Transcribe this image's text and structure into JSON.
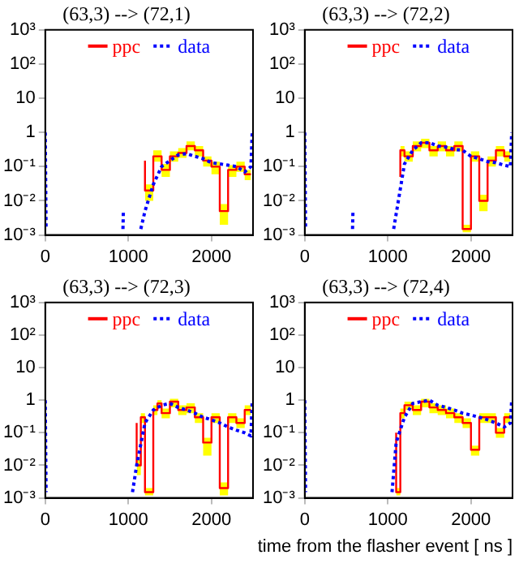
{
  "chart_data": [
    {
      "type": "step",
      "title": "(63,3) --> (72,1)",
      "log": "y",
      "legend": "top",
      "line_style": "solid",
      "xlim": [
        0,
        2500
      ],
      "xticks": [
        0,
        1000,
        2000
      ],
      "ylim": [
        0.001,
        1000
      ],
      "yticks": [
        {
          "value": 1000,
          "label": "10³"
        },
        {
          "value": 100,
          "label": "10²"
        },
        {
          "value": 10,
          "label": "10"
        },
        {
          "value": 1,
          "label": "1"
        },
        {
          "value": 0.1,
          "label": "10⁻¹"
        },
        {
          "value": 0.01,
          "label": "10⁻²"
        },
        {
          "value": 0.001,
          "label": "10⁻³"
        }
      ],
      "series": [
        {
          "name": "ppc",
          "color": "#ff0000",
          "x": [
            1200,
            1300,
            1400,
            1500,
            1600,
            1700,
            1800,
            1900,
            2000,
            2100,
            2200,
            2300,
            2400,
            2475
          ],
          "values": [
            0.15,
            0.02,
            0.2,
            0.08,
            0.2,
            0.25,
            0.4,
            0.3,
            0.15,
            0.1,
            0.005,
            0.08,
            0.1,
            0.06
          ],
          "upper": [
            0.2,
            0.03,
            0.3,
            0.12,
            0.28,
            0.35,
            0.55,
            0.4,
            0.2,
            0.14,
            0.008,
            0.11,
            0.14,
            0.08
          ],
          "lower": [
            0.1,
            0.01,
            0.14,
            0.05,
            0.14,
            0.18,
            0.3,
            0.2,
            0.1,
            0.06,
            0.002,
            0.05,
            0.07,
            0.04
          ]
        },
        {
          "name": "data",
          "type": "line",
          "color": "#0000ff",
          "line_style": "dotted",
          "x": [
            0,
            10,
            20,
            935,
            940,
            950,
            1150,
            1200,
            1300,
            1400,
            1500,
            1600,
            1700,
            1800,
            1900,
            2000,
            2100,
            2200,
            2300,
            2400,
            2475,
            2490
          ],
          "values": [
            1,
            0.0015,
            null,
            0.0015,
            0.005,
            null,
            0.0015,
            0.005,
            0.03,
            0.1,
            0.15,
            0.22,
            0.24,
            0.2,
            0.17,
            0.13,
            0.12,
            0.11,
            0.1,
            0.07,
            0.1,
            1
          ]
        }
      ]
    },
    {
      "type": "step",
      "title": "(63,3) --> (72,2)",
      "log": "y",
      "legend": "top",
      "line_style": "solid",
      "xlim": [
        0,
        2500
      ],
      "xticks": [
        0,
        1000,
        2000
      ],
      "ylim": [
        0.001,
        1000
      ],
      "yticks": [
        {
          "value": 1000,
          "label": "10³"
        },
        {
          "value": 100,
          "label": "10²"
        },
        {
          "value": 10,
          "label": "10"
        },
        {
          "value": 1,
          "label": "1"
        },
        {
          "value": 0.1,
          "label": "10⁻¹"
        },
        {
          "value": 0.01,
          "label": "10⁻²"
        },
        {
          "value": 0.001,
          "label": "10⁻³"
        }
      ],
      "series": [
        {
          "name": "ppc",
          "color": "#ff0000",
          "x": [
            1150,
            1200,
            1300,
            1400,
            1500,
            1600,
            1700,
            1800,
            1900,
            2000,
            2100,
            2200,
            2300,
            2400,
            2475
          ],
          "values": [
            0.05,
            0.3,
            0.2,
            0.4,
            0.5,
            0.3,
            0.4,
            0.3,
            0.4,
            0.0015,
            0.2,
            0.01,
            0.15,
            0.3,
            0.2
          ],
          "upper": [
            0.07,
            0.4,
            0.28,
            0.55,
            0.65,
            0.4,
            0.55,
            0.4,
            0.55,
            0.002,
            0.28,
            0.015,
            0.2,
            0.4,
            0.28
          ],
          "lower": [
            0.03,
            0.2,
            0.14,
            0.28,
            0.35,
            0.2,
            0.28,
            0.2,
            0.28,
            0.0012,
            0.14,
            0.005,
            0.1,
            0.2,
            0.14
          ]
        },
        {
          "name": "data",
          "type": "line",
          "color": "#0000ff",
          "line_style": "dotted",
          "x": [
            0,
            10,
            20,
            575,
            580,
            590,
            1070,
            1200,
            1300,
            1400,
            1500,
            1600,
            1700,
            1800,
            1900,
            2000,
            2100,
            2200,
            2300,
            2400,
            2475,
            2490
          ],
          "values": [
            1,
            0.0015,
            null,
            0.0015,
            0.005,
            null,
            0.0015,
            0.12,
            0.3,
            0.5,
            0.5,
            0.4,
            0.37,
            0.32,
            0.3,
            0.2,
            0.17,
            0.14,
            0.13,
            0.11,
            0.1,
            1
          ]
        }
      ]
    },
    {
      "type": "step",
      "title": "(63,3) --> (72,3)",
      "log": "y",
      "legend": "top",
      "line_style": "solid",
      "xlim": [
        0,
        2500
      ],
      "xticks": [
        0,
        1000,
        2000
      ],
      "ylim": [
        0.001,
        1000
      ],
      "yticks": [
        {
          "value": 1000,
          "label": "10³"
        },
        {
          "value": 100,
          "label": "10²"
        },
        {
          "value": 10,
          "label": "10"
        },
        {
          "value": 1,
          "label": "1"
        },
        {
          "value": 0.1,
          "label": "10⁻¹"
        },
        {
          "value": 0.01,
          "label": "10⁻²"
        },
        {
          "value": 0.001,
          "label": "10⁻³"
        }
      ],
      "series": [
        {
          "name": "ppc",
          "color": "#ff0000",
          "x": [
            1100,
            1150,
            1200,
            1300,
            1350,
            1400,
            1500,
            1600,
            1700,
            1800,
            1900,
            2000,
            2100,
            2200,
            2300,
            2400,
            2475
          ],
          "values": [
            0.2,
            0.01,
            0.3,
            0.0015,
            0.5,
            0.8,
            0.4,
            0.9,
            0.5,
            0.6,
            0.3,
            0.05,
            0.3,
            0.002,
            0.3,
            0.2,
            0.5
          ],
          "upper": [
            0.28,
            0.015,
            0.4,
            0.002,
            0.7,
            1,
            0.55,
            1.1,
            0.7,
            0.8,
            0.4,
            0.07,
            0.4,
            0.003,
            0.4,
            0.28,
            0.7
          ],
          "lower": [
            0.14,
            0.005,
            0.2,
            0.0012,
            0.35,
            0.55,
            0.28,
            0.6,
            0.35,
            0.4,
            0.2,
            0.02,
            0.2,
            0.0012,
            0.2,
            0.14,
            0.35
          ]
        },
        {
          "name": "data",
          "type": "line",
          "color": "#0000ff",
          "line_style": "dotted",
          "x": [
            0,
            10,
            20,
            1050,
            1100,
            1200,
            1300,
            1400,
            1500,
            1600,
            1700,
            1800,
            1900,
            2000,
            2100,
            2200,
            2300,
            2400,
            2475,
            2490
          ],
          "values": [
            1,
            0.0015,
            null,
            0.0015,
            0.01,
            0.2,
            0.5,
            0.7,
            0.8,
            0.6,
            0.5,
            0.4,
            0.3,
            0.25,
            0.2,
            0.15,
            0.12,
            0.1,
            0.08,
            1
          ]
        }
      ]
    },
    {
      "type": "step",
      "title": "(63,3) --> (72,4)",
      "xlabel": "time from the flasher event [ ns ]",
      "log": "y",
      "legend": "top",
      "line_style": "solid",
      "xlim": [
        0,
        2500
      ],
      "xticks": [
        0,
        1000,
        2000
      ],
      "ylim": [
        0.001,
        1000
      ],
      "yticks": [
        {
          "value": 1000,
          "label": "10³"
        },
        {
          "value": 100,
          "label": "10²"
        },
        {
          "value": 10,
          "label": "10"
        },
        {
          "value": 1,
          "label": "1"
        },
        {
          "value": 0.1,
          "label": "10⁻¹"
        },
        {
          "value": 0.01,
          "label": "10⁻²"
        },
        {
          "value": 0.001,
          "label": "10⁻³"
        }
      ],
      "series": [
        {
          "name": "ppc",
          "color": "#ff0000",
          "x": [
            1100,
            1150,
            1200,
            1300,
            1400,
            1500,
            1600,
            1700,
            1800,
            1900,
            2000,
            2100,
            2200,
            2300,
            2400,
            2475
          ],
          "values": [
            0.1,
            0.0015,
            0.4,
            0.7,
            0.5,
            0.9,
            0.6,
            0.5,
            0.4,
            0.3,
            0.2,
            0.03,
            0.3,
            0.3,
            0.1,
            0.3
          ],
          "upper": [
            0.14,
            0.002,
            0.55,
            0.9,
            0.7,
            1.1,
            0.8,
            0.7,
            0.55,
            0.4,
            0.28,
            0.04,
            0.4,
            0.4,
            0.14,
            0.4
          ],
          "lower": [
            0.07,
            0.0012,
            0.28,
            0.5,
            0.35,
            0.6,
            0.4,
            0.35,
            0.28,
            0.2,
            0.14,
            0.02,
            0.2,
            0.2,
            0.07,
            0.2
          ]
        },
        {
          "name": "data",
          "type": "line",
          "color": "#0000ff",
          "line_style": "dotted",
          "x": [
            0,
            10,
            20,
            1050,
            1100,
            1200,
            1300,
            1400,
            1500,
            1600,
            1700,
            1800,
            1900,
            2000,
            2100,
            2200,
            2300,
            2400,
            2475,
            2490
          ],
          "values": [
            1,
            0.0015,
            null,
            0.0015,
            0.05,
            0.3,
            0.8,
            0.9,
            1,
            0.7,
            0.6,
            0.5,
            0.4,
            0.35,
            0.3,
            0.25,
            0.2,
            0.15,
            0.2,
            1
          ]
        }
      ]
    }
  ]
}
